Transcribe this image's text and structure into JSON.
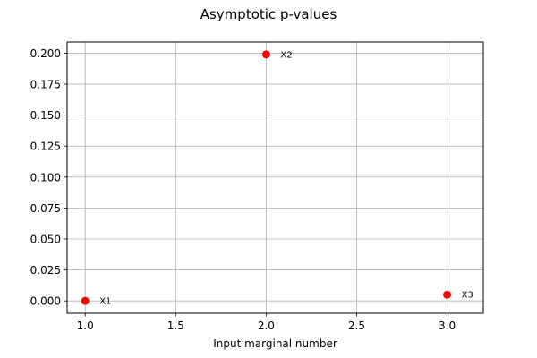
{
  "chart_data": {
    "type": "scatter",
    "title": "Asymptotic p-values",
    "xlabel": "Input marginal number",
    "ylabel": "",
    "xlim": [
      0.9,
      3.2
    ],
    "ylim": [
      -0.01,
      0.209
    ],
    "grid": true,
    "x_ticks": [
      1.0,
      1.5,
      2.0,
      2.5,
      3.0
    ],
    "x_tick_labels": [
      "1.0",
      "1.5",
      "2.0",
      "2.5",
      "3.0"
    ],
    "y_ticks": [
      0.0,
      0.025,
      0.05,
      0.075,
      0.1,
      0.125,
      0.15,
      0.175,
      0.2
    ],
    "y_tick_labels": [
      "0.000",
      "0.025",
      "0.050",
      "0.075",
      "0.100",
      "0.125",
      "0.150",
      "0.175",
      "0.200"
    ],
    "points": [
      {
        "x": 1,
        "y": 0.0,
        "label": "X1"
      },
      {
        "x": 2,
        "y": 0.199,
        "label": "X2"
      },
      {
        "x": 3,
        "y": 0.005,
        "label": "X3"
      }
    ],
    "colors": {
      "point": "#ff0000",
      "grid": "#b0b0b0",
      "axis": "#000000"
    }
  }
}
